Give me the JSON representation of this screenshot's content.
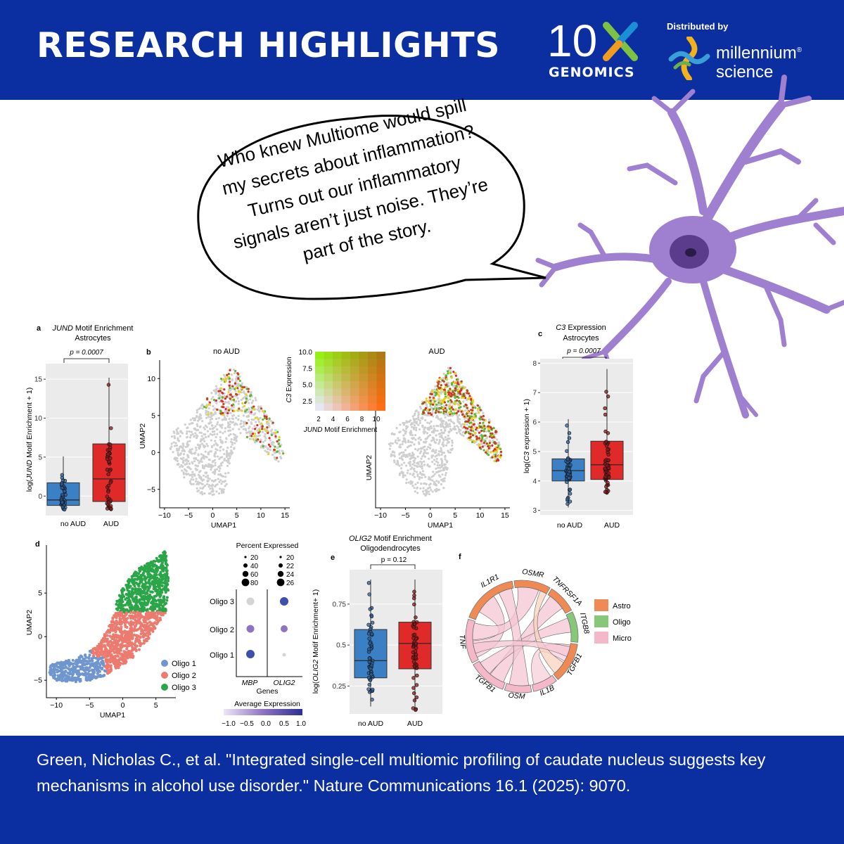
{
  "header": {
    "title": "RESEARCH HIGHLIGHTS",
    "logo_10x": "10x",
    "logo_10x_sub": "GENOMICS",
    "distributed_by": "Distributed by",
    "millennium_line1": "millennium",
    "millennium_line2": "science",
    "colors": {
      "bar": "#0b2fa0",
      "x_green": "#7dc242",
      "x_blue": "#1a8fd6",
      "x_orange": "#f29c1f"
    }
  },
  "speech_bubble": {
    "lines": [
      "Who knew Multiome would spill",
      "my secrets about inflammation?",
      "Turns out our inflammatory",
      "signals aren’t just noise. They’re",
      "part of the story."
    ]
  },
  "neuron": {
    "color": "#9f7fcf",
    "nucleus_color": "#5b3c8c"
  },
  "panels": {
    "a": {
      "letter": "a",
      "title_italic": "JUND",
      "title_rest": " Motif Enrichment",
      "subtitle": "Astrocytes",
      "p": "p = 0.0007",
      "ylabel_pre": "log(",
      "ylabel_italic": "JUND",
      "ylabel_post": " Motif Enrichment + 1)"
    },
    "b": {
      "letter": "b",
      "left_title": "no AUD",
      "right_title": "AUD",
      "xlabel": "UMAP1",
      "ylabel": "UMAP2",
      "legend_ylabel_italic": "C3",
      "legend_ylabel_rest": " Expression",
      "legend_xlabel_italic": "JUND",
      "legend_xlabel_rest": " Motif Enrichment"
    },
    "c": {
      "letter": "c",
      "title_italic": "C3",
      "title_rest": " Expression",
      "subtitle": "Astrocytes",
      "p": "p = 0.0007",
      "ylabel_pre": "log(",
      "ylabel_italic": "C3",
      "ylabel_post": " expression + 1)"
    },
    "d": {
      "letter": "d",
      "xlabel": "UMAP1",
      "ylabel": "UMAP2",
      "legend": [
        "Oligo 1",
        "Oligo 2",
        "Oligo 3"
      ],
      "dot_title": "Percent Expressed",
      "dot_xlabel": "Genes",
      "avg_title": "Average Expression",
      "avg_ticks": [
        "−1.0",
        "−0.5",
        "0.0",
        "0.5",
        "1.0"
      ],
      "mbp_sizes": [
        "20",
        "40",
        "60",
        "80"
      ],
      "olig2_sizes": [
        "20",
        "22",
        "24",
        "26"
      ],
      "genes": [
        "MBP",
        "OLIG2"
      ]
    },
    "e": {
      "letter": "e",
      "title_italic": "OLIG2",
      "title_rest": " Motif Enrichment",
      "subtitle": "Oligodendrocytes",
      "p": "p = 0.12",
      "ylabel_pre": "log(",
      "ylabel_italic": "OLIG2",
      "ylabel_post": " Motif Enrichment+ 1)"
    },
    "f": {
      "letter": "f",
      "legend": [
        "Astro",
        "Oligo",
        "Micro"
      ],
      "colors": {
        "Astro": "#f08a55",
        "Oligo": "#86c77a",
        "Micro": "#f5b8c8"
      }
    }
  },
  "chart_data": [
    {
      "panel": "a",
      "type": "box",
      "title": "JUND Motif Enrichment Astrocytes",
      "ylabel": "log(JUND Motif Enrichment + 1)",
      "categories": [
        "no AUD",
        "AUD"
      ],
      "ylim": [
        -2.5,
        17
      ],
      "yticks": [
        0,
        5,
        10,
        15
      ],
      "boxes": [
        {
          "name": "no AUD",
          "color": "#3b7fc4",
          "q1": -1.2,
          "median": -0.5,
          "q3": 1.7,
          "min": -1.8,
          "max": 5.1
        },
        {
          "name": "AUD",
          "color": "#e02a2a",
          "q1": -0.7,
          "median": 2.2,
          "q3": 6.7,
          "min": -1.8,
          "max": 15.2
        }
      ],
      "annotation": "p = 0.0007"
    },
    {
      "panel": "b",
      "type": "scatter",
      "plots": [
        {
          "title": "no AUD",
          "xlabel": "UMAP1",
          "ylabel": "UMAP2",
          "xlim": [
            -11,
            16
          ],
          "ylim": [
            -7.5,
            12.5
          ],
          "xticks": [
            -10,
            -5,
            0,
            5,
            10,
            15
          ],
          "yticks": [
            -5,
            0,
            5,
            10
          ]
        },
        {
          "title": "AUD",
          "xlabel": "UMAP1",
          "ylabel": "UMAP2",
          "xlim": [
            -11,
            16
          ],
          "ylim": [
            -7.5,
            12.5
          ],
          "xticks": [
            -10,
            -5,
            0,
            5,
            10,
            15
          ]
        }
      ],
      "legend": {
        "xlabel": "JUND Motif Enrichment",
        "ylabel": "C3 Expression",
        "xticks": [
          2,
          4,
          6,
          8,
          10
        ],
        "yticks": [
          2.5,
          5.0,
          7.5,
          10.0
        ]
      }
    },
    {
      "panel": "c",
      "type": "box",
      "title": "C3 Expression Astrocytes",
      "ylabel": "log(C3 expression + 1)",
      "categories": [
        "no AUD",
        "AUD"
      ],
      "ylim": [
        2.85,
        8.15
      ],
      "yticks": [
        3,
        4,
        5,
        6,
        7,
        8
      ],
      "boxes": [
        {
          "name": "no AUD",
          "color": "#3b7fc4",
          "q1": 4.0,
          "median": 4.35,
          "q3": 4.75,
          "min": 3.1,
          "max": 6.1
        },
        {
          "name": "AUD",
          "color": "#e02a2a",
          "q1": 4.05,
          "median": 4.55,
          "q3": 5.35,
          "min": 3.6,
          "max": 7.8
        }
      ],
      "annotation": "p = 0.0007"
    },
    {
      "panel": "d",
      "type": "scatter",
      "xlabel": "UMAP1",
      "ylabel": "UMAP2",
      "xlim": [
        -11.5,
        8
      ],
      "ylim": [
        -7,
        10.5
      ],
      "xticks": [
        -10,
        -5,
        0,
        5
      ],
      "yticks": [
        -5,
        0,
        5
      ],
      "series": [
        {
          "name": "Oligo 1",
          "color": "#6f96cf"
        },
        {
          "name": "Oligo 2",
          "color": "#ec7b6f"
        },
        {
          "name": "Oligo 3",
          "color": "#2aa648"
        }
      ]
    },
    {
      "panel": "d-dot",
      "type": "dot",
      "categories": [
        "MBP",
        "OLIG2"
      ],
      "rows": [
        "Oligo 3",
        "Oligo 2",
        "Oligo 1"
      ],
      "xlabel": "Genes"
    },
    {
      "panel": "e",
      "type": "box",
      "title": "OLIG2 Motif Enrichment Oligodendrocytes",
      "ylabel": "log(OLIG2 Motif Enrichment+ 1)",
      "categories": [
        "no AUD",
        "AUD"
      ],
      "ylim": [
        0.08,
        0.96
      ],
      "yticks": [
        0.25,
        0.5,
        0.75
      ],
      "boxes": [
        {
          "name": "no AUD",
          "color": "#3b7fc4",
          "q1": 0.3,
          "median": 0.405,
          "q3": 0.595,
          "min": 0.125,
          "max": 0.9
        },
        {
          "name": "AUD",
          "color": "#e02a2a",
          "q1": 0.355,
          "median": 0.51,
          "q3": 0.64,
          "min": 0.1,
          "max": 0.9
        }
      ],
      "annotation": "p = 0.12"
    },
    {
      "panel": "f",
      "type": "chord",
      "labels": [
        "IL1R1",
        "OSMR",
        "TNFRSF1A",
        "ITGB8",
        "TGFB1",
        "IL1B",
        "OSM",
        "TGFB1",
        "TNF"
      ],
      "legend": [
        "Astro",
        "Oligo",
        "Micro"
      ]
    }
  ],
  "citation": "Green, Nicholas C., et al. \"Integrated single-cell multiomic profiling of caudate nucleus suggests key mechanisms in alcohol use disorder.\" Nature Communications 16.1 (2025): 9070."
}
